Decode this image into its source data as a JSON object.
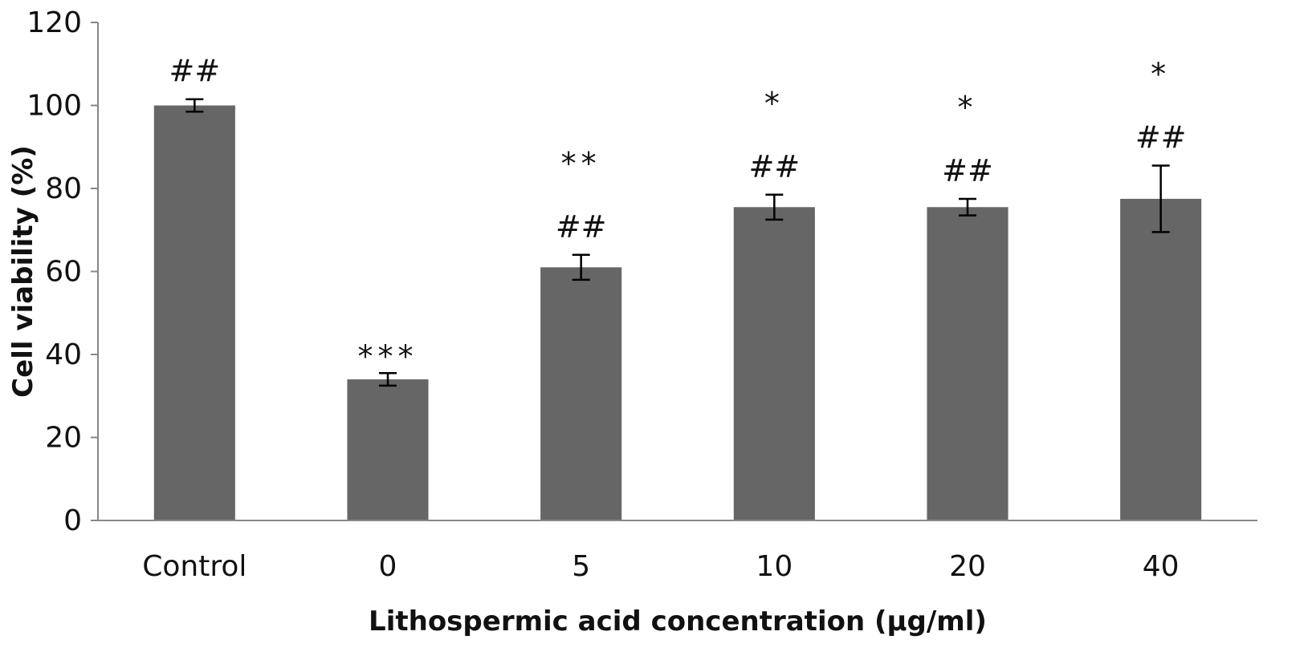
{
  "chart_data": {
    "type": "bar",
    "xlabel": "Lithospermic acid concentration (μg/ml)",
    "ylabel": "Cell viability (%)",
    "ylim": [
      0,
      120
    ],
    "yticks": [
      0,
      20,
      40,
      60,
      80,
      100,
      120
    ],
    "grid": false,
    "bar_color": "#666666",
    "categories": [
      "Control",
      "0",
      "5",
      "10",
      "20",
      "40"
    ],
    "values": [
      100,
      34,
      61,
      75.5,
      75.5,
      77.5
    ],
    "error": [
      1.5,
      1.5,
      3,
      3,
      2,
      8
    ],
    "annotations": [
      [
        "##"
      ],
      [
        "***"
      ],
      [
        "##",
        "**"
      ],
      [
        "##",
        "*"
      ],
      [
        "##",
        "*"
      ],
      [
        "##",
        "*"
      ]
    ]
  }
}
